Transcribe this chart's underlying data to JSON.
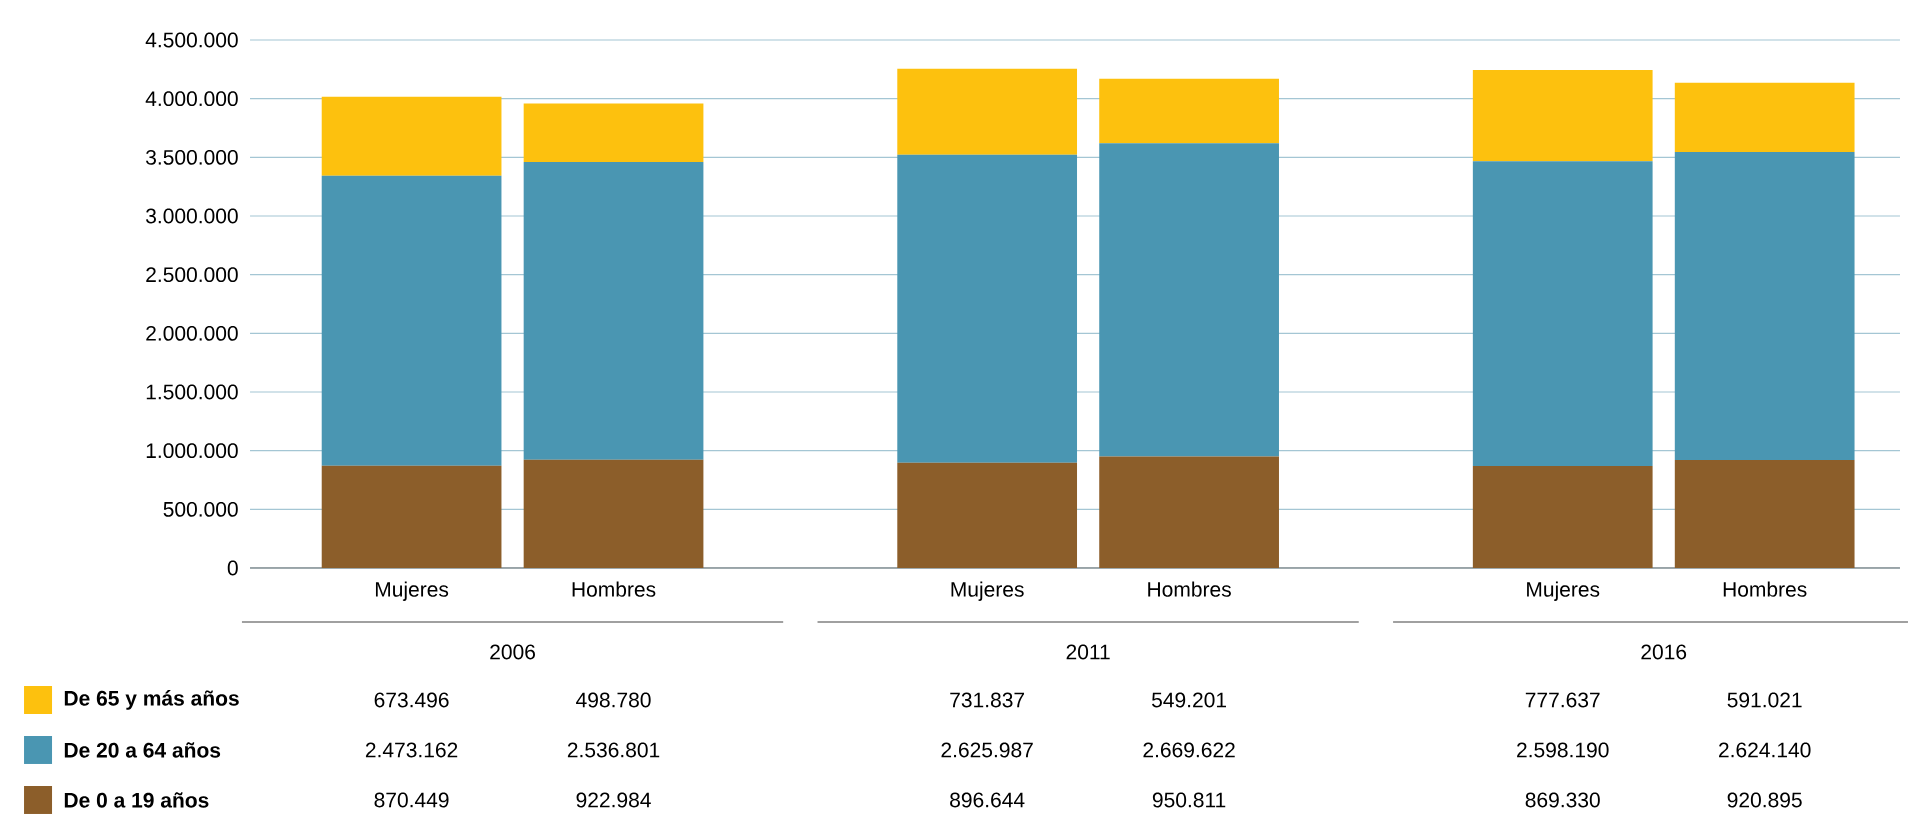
{
  "chart_data": {
    "type": "bar",
    "stacked": true,
    "categories": [
      "Mujeres",
      "Hombres",
      "Mujeres",
      "Hombres",
      "Mujeres",
      "Hombres"
    ],
    "annotations": [
      "2006",
      "2011",
      "2016"
    ],
    "series": [
      {
        "name": "De 0 a 19 años",
        "color": "#8c5e2a",
        "values": [
          870449,
          922984,
          896644,
          950811,
          869330,
          920895
        ],
        "value_labels": [
          "870.449",
          "922.984",
          "896.644",
          "950.811",
          "869.330",
          "920.895"
        ]
      },
      {
        "name": "De 20 a 64 años",
        "color": "#4a96b2",
        "values": [
          2473162,
          2536801,
          2625987,
          2669622,
          2598190,
          2624140
        ],
        "value_labels": [
          "2.473.162",
          "2.536.801",
          "2.625.987",
          "2.669.622",
          "2.598.190",
          "2.624.140"
        ]
      },
      {
        "name": "De 65 y más años",
        "color": "#fdc10e",
        "values": [
          673496,
          498780,
          731837,
          549201,
          777637,
          591021
        ],
        "value_labels": [
          "673.496",
          "498.780",
          "731.837",
          "549.201",
          "777.637",
          "591.021"
        ]
      }
    ],
    "ylim": [
      0,
      4500000
    ],
    "yticks": [
      0,
      {
        "value": 500000,
        "label": "500.000"
      },
      {
        "value": 1000000,
        "label": "1.000.000"
      },
      {
        "value": 1500000,
        "label": "1.500.000"
      },
      {
        "value": 2000000,
        "label": "2.000.000"
      },
      {
        "value": 2500000,
        "label": "2.500.000"
      },
      {
        "value": 3000000,
        "label": "3.000.000"
      },
      {
        "value": 3500000,
        "label": "3.500.000"
      },
      {
        "value": 4000000,
        "label": "4.000.000"
      },
      {
        "value": 4500000,
        "label": "4.500.000"
      }
    ],
    "grid": "y",
    "legend": "bottom"
  }
}
